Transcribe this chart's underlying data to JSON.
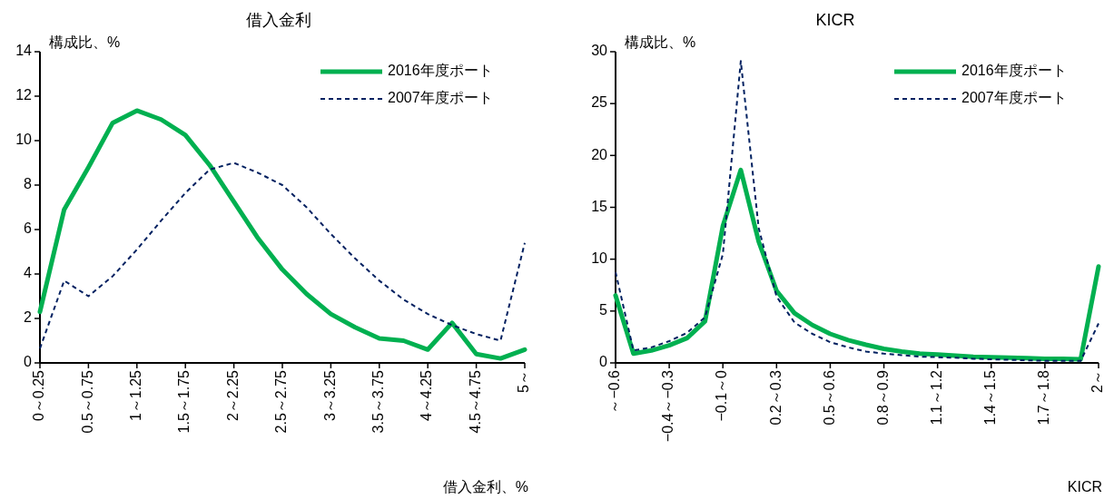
{
  "chart_data": [
    {
      "type": "line",
      "title": "借入金利",
      "ylabel": "構成比、%",
      "xlabel": "借入金利、%",
      "legend": "top right",
      "categories": [
        "0～0.25",
        null,
        "0.5～0.75",
        null,
        "1～1.25",
        null,
        "1.5～1.75",
        null,
        "2～2.25",
        null,
        "2.5～2.75",
        null,
        "3～3.25",
        null,
        "3.5～3.75",
        null,
        "4～4.25",
        null,
        "4.5～4.75",
        null,
        "5～"
      ],
      "ylim": [
        0,
        14
      ],
      "yticks": [
        0,
        2,
        4,
        6,
        8,
        10,
        12,
        14
      ],
      "series": [
        {
          "name": "2016年度ポート",
          "color": "#00b050",
          "line_style": "solid",
          "values": [
            2.3,
            6.9,
            8.8,
            10.8,
            11.35,
            10.95,
            10.25,
            8.9,
            7.25,
            5.6,
            4.2,
            3.1,
            2.2,
            1.6,
            1.1,
            1.0,
            0.6,
            1.8,
            0.4,
            0.2,
            0.6
          ]
        },
        {
          "name": "2007年度ポート",
          "color": "#002060",
          "line_style": "dashed",
          "values": [
            0.65,
            3.7,
            3.0,
            3.9,
            5.1,
            6.4,
            7.65,
            8.7,
            9.0,
            8.55,
            8.0,
            7.0,
            5.8,
            4.7,
            3.7,
            2.85,
            2.2,
            1.7,
            1.3,
            1.0,
            5.4
          ]
        }
      ]
    },
    {
      "type": "line",
      "title": "KICR",
      "ylabel": "構成比、%",
      "xlabel": "KICR",
      "legend": "top right",
      "categories": [
        "～−0.6",
        null,
        null,
        "−0.4～−0.3",
        null,
        null,
        "−0.1～0",
        null,
        null,
        "0.2～0.3",
        null,
        null,
        "0.5～0.6",
        null,
        null,
        "0.8～0.9",
        null,
        null,
        "1.1～1.2",
        null,
        null,
        "1.4～1.5",
        null,
        null,
        "1.7～1.8",
        null,
        null,
        "2～"
      ],
      "ylim": [
        0,
        30
      ],
      "yticks": [
        0,
        5,
        10,
        15,
        20,
        25,
        30
      ],
      "series": [
        {
          "name": "2016年度ポート",
          "color": "#00b050",
          "line_style": "solid",
          "values": [
            6.5,
            0.9,
            1.2,
            1.7,
            2.4,
            4.0,
            13.2,
            18.6,
            11.7,
            6.95,
            4.8,
            3.65,
            2.8,
            2.2,
            1.75,
            1.35,
            1.1,
            0.9,
            0.8,
            0.7,
            0.6,
            0.55,
            0.5,
            0.45,
            0.4,
            0.4,
            0.35,
            9.3
          ]
        },
        {
          "name": "2007年度ポート",
          "color": "#002060",
          "line_style": "dashed",
          "values": [
            8.75,
            1.2,
            1.5,
            2.1,
            2.9,
            4.4,
            10.5,
            29.1,
            13.0,
            6.4,
            3.9,
            2.8,
            2.0,
            1.5,
            1.1,
            0.9,
            0.75,
            0.6,
            0.55,
            0.5,
            0.4,
            0.35,
            0.3,
            0.25,
            0.2,
            0.2,
            0.2,
            3.8
          ]
        }
      ]
    }
  ]
}
